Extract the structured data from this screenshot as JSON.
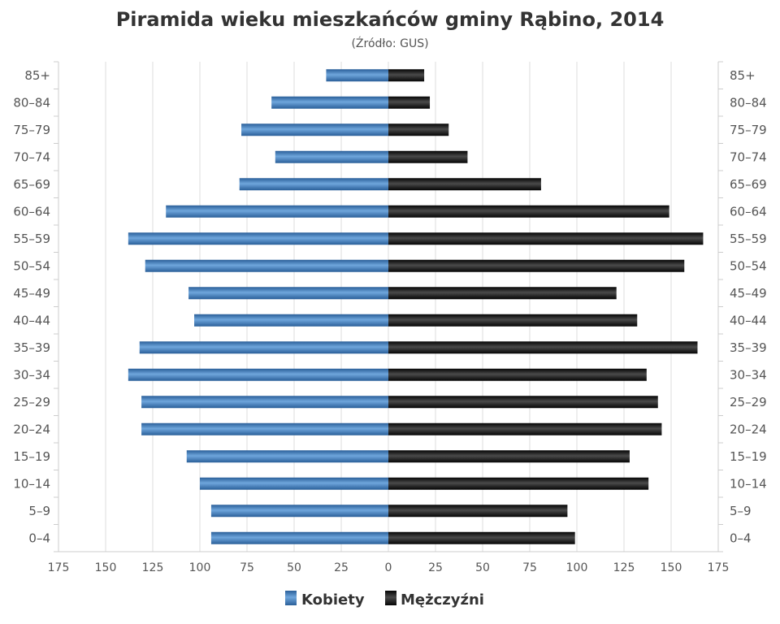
{
  "colors": {
    "female": "#3d80c2",
    "male": "#111111",
    "grid": "#dddddd",
    "axis": "#cccccc"
  },
  "chart_data": {
    "type": "bar",
    "orientation": "horizontal-pyramid",
    "title": "Piramida wieku mieszkańców gminy Rąbino, 2014",
    "subtitle": "(Źródło: GUS)",
    "categories": [
      "85+",
      "80–84",
      "75–79",
      "70–74",
      "65–69",
      "60–64",
      "55–59",
      "50–54",
      "45–49",
      "40–44",
      "35–39",
      "30–34",
      "25–29",
      "20–24",
      "15–19",
      "10–14",
      "5–9",
      "0–4"
    ],
    "series": [
      {
        "name": "Kobiety",
        "values": [
          33,
          62,
          78,
          60,
          79,
          118,
          138,
          129,
          106,
          103,
          132,
          138,
          131,
          131,
          107,
          100,
          94,
          94
        ]
      },
      {
        "name": "Mężczyźni",
        "values": [
          19,
          22,
          32,
          42,
          81,
          149,
          167,
          157,
          121,
          132,
          164,
          137,
          143,
          145,
          128,
          138,
          95,
          99
        ]
      }
    ],
    "x_ticks": [
      "175",
      "150",
      "125",
      "100",
      "75",
      "50",
      "25",
      "0",
      "25",
      "50",
      "75",
      "100",
      "125",
      "150",
      "175"
    ],
    "xlim": [
      -175,
      175
    ],
    "grid": true,
    "legend": "bottom-center"
  }
}
